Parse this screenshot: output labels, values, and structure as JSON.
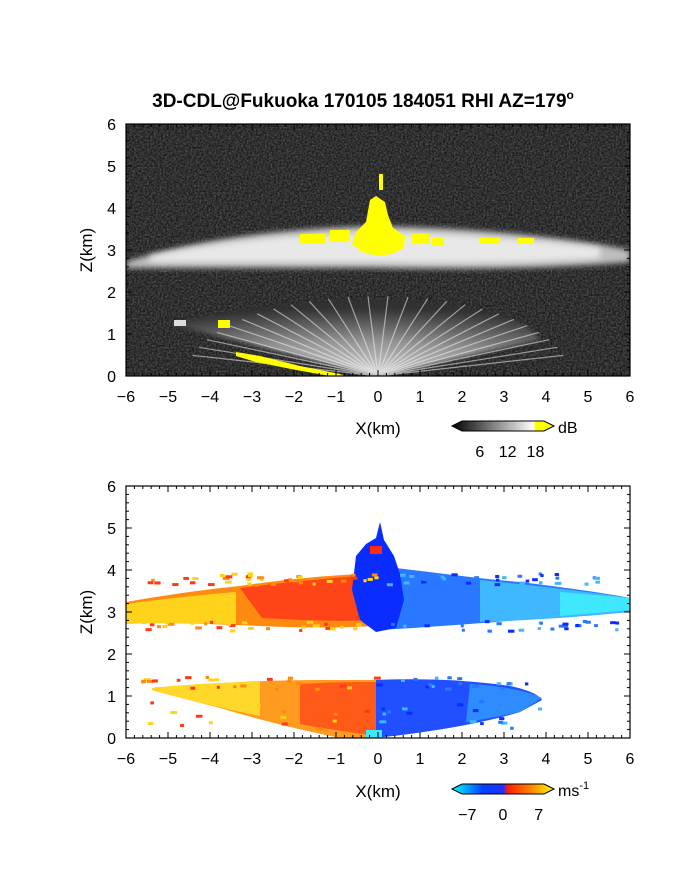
{
  "title": "3D-CDL@Fukuoka 170105 184051 RHI AZ=179",
  "title_superscript": "o",
  "chart_data": [
    {
      "type": "heatmap",
      "name": "backscatter-intensity",
      "xlabel": "X(km)",
      "ylabel": "Z(km)",
      "xlim": [
        -6,
        6
      ],
      "ylim": [
        0,
        6
      ],
      "xticks": [
        "-6",
        "-5",
        "-4",
        "-3",
        "-2",
        "-1",
        "0",
        "1",
        "2",
        "3",
        "4",
        "5",
        "6"
      ],
      "yticks": [
        "0",
        "1",
        "2",
        "3",
        "4",
        "5",
        "6"
      ],
      "grid": false,
      "colorbar": {
        "unit": "dB",
        "ticks": [
          "6",
          "12",
          "18"
        ],
        "tick_values": [
          6,
          12,
          18
        ],
        "range": [
          0,
          22
        ],
        "colors": [
          "#000000",
          "#ffffff",
          "#ffff00"
        ]
      },
      "features": [
        {
          "label": "cloud layer",
          "x_range": [
            -6,
            6
          ],
          "z_range": [
            2.6,
            3.6
          ],
          "intensity": "bright"
        },
        {
          "label": "saturated core",
          "x_range": [
            -0.3,
            0.4
          ],
          "z_range": [
            3.0,
            4.6
          ],
          "intensity": "max"
        },
        {
          "label": "near-ground fan",
          "x_range": [
            -4.8,
            3.8
          ],
          "z_range": [
            0,
            1.3
          ],
          "intensity": "medium"
        }
      ]
    },
    {
      "type": "heatmap",
      "name": "doppler-velocity",
      "xlabel": "X(km)",
      "ylabel": "Z(km)",
      "xlim": [
        -6,
        6
      ],
      "ylim": [
        0,
        6
      ],
      "xticks": [
        "-6",
        "-5",
        "-4",
        "-3",
        "-2",
        "-1",
        "0",
        "1",
        "2",
        "3",
        "4",
        "5",
        "6"
      ],
      "yticks": [
        "0",
        "1",
        "2",
        "3",
        "4",
        "5",
        "6"
      ],
      "grid": false,
      "colorbar": {
        "unit": "ms",
        "unit_superscript": "-1",
        "ticks": [
          "-7",
          "0",
          "7"
        ],
        "tick_values": [
          -7,
          0,
          7
        ],
        "range": [
          -10,
          10
        ],
        "colors": [
          "#00ffff",
          "#0040ff",
          "#ff2000",
          "#ffff00"
        ]
      },
      "features": [
        {
          "label": "upper layer, negative x",
          "x_range": [
            -6,
            0
          ],
          "z_range": [
            2.7,
            3.7
          ],
          "velocity_ms": 5
        },
        {
          "label": "upper layer, positive x",
          "x_range": [
            0,
            6
          ],
          "z_range": [
            2.6,
            3.5
          ],
          "velocity_ms": -5
        },
        {
          "label": "lower layer, negative x",
          "x_range": [
            -5.5,
            0
          ],
          "z_range": [
            0,
            1.3
          ],
          "velocity_ms": 5
        },
        {
          "label": "lower layer, positive x",
          "x_range": [
            0,
            4
          ],
          "z_range": [
            0,
            1.3
          ],
          "velocity_ms": -5
        }
      ]
    }
  ]
}
